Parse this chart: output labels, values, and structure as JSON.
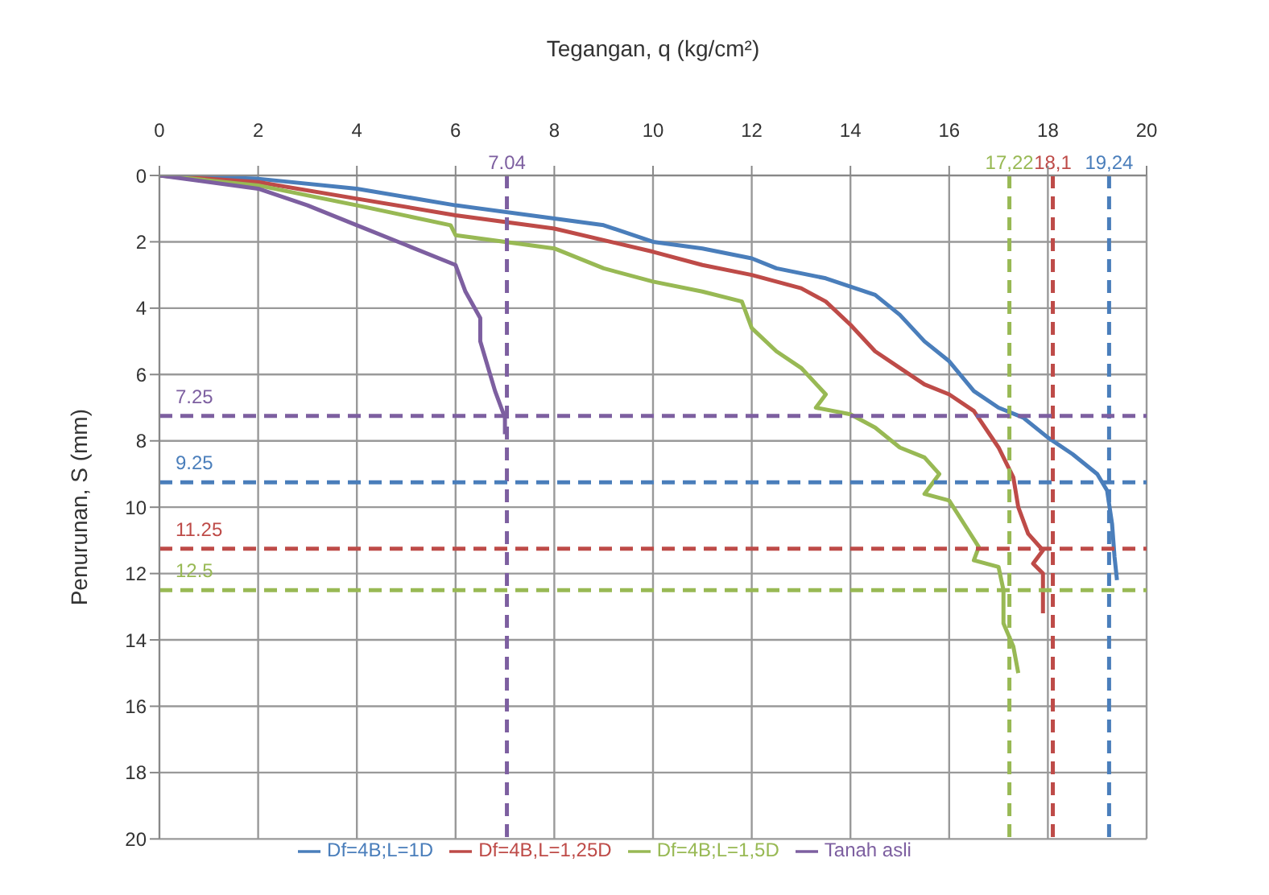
{
  "chart_data": {
    "type": "line",
    "xlabel": "Tegangan, q (kg/cm²)",
    "ylabel": "Penurunan, S (mm)",
    "xlim": [
      0,
      20
    ],
    "xticks": [
      0,
      2,
      4,
      6,
      8,
      10,
      12,
      14,
      16,
      18,
      20
    ],
    "ylim": [
      20,
      0
    ],
    "yticks": [
      0,
      2,
      4,
      6,
      8,
      10,
      12,
      14,
      16,
      18,
      20
    ],
    "grid": true,
    "legend": "bottom",
    "marker": "none",
    "line_style": "solid",
    "series": [
      {
        "name": "Df=4B;L=1D",
        "color": "#4a7ebb",
        "x": [
          0,
          2,
          4,
          6,
          8,
          9,
          10,
          11,
          12,
          12.5,
          13.5,
          14.5,
          15,
          15.5,
          16,
          16.5,
          17,
          17.5,
          18,
          18.5,
          19,
          19.2,
          19.3,
          19.35,
          19.4
        ],
        "values": [
          0,
          0.1,
          0.4,
          0.9,
          1.3,
          1.5,
          2.0,
          2.2,
          2.5,
          2.8,
          3.1,
          3.6,
          4.2,
          5,
          5.6,
          6.5,
          7,
          7.3,
          7.9,
          8.4,
          9,
          9.5,
          10.5,
          11.5,
          12.2
        ]
      },
      {
        "name": "Df=4B,L=1,25D",
        "color": "#be4b48",
        "x": [
          0,
          2,
          4,
          6,
          8,
          10,
          11,
          12,
          13,
          13.5,
          14,
          14.5,
          15,
          15.5,
          16,
          16.5,
          17,
          17.3,
          17.4,
          17.6,
          17.9,
          17.7,
          17.9,
          17.9
        ],
        "values": [
          0,
          0.2,
          0.7,
          1.2,
          1.6,
          2.3,
          2.7,
          3.0,
          3.4,
          3.8,
          4.5,
          5.3,
          5.8,
          6.3,
          6.6,
          7.1,
          8.2,
          9.1,
          10,
          10.8,
          11.3,
          11.7,
          12,
          13.2
        ]
      },
      {
        "name": "Df=4B;L=1,5D",
        "color": "#98b954",
        "x": [
          0,
          2,
          4,
          5.9,
          6,
          8,
          9,
          10,
          11,
          11.8,
          12,
          12.5,
          13,
          13.5,
          13.3,
          14,
          14.5,
          15,
          15.5,
          15.8,
          15.5,
          16,
          16.3,
          16.6,
          16.5,
          17,
          17.1,
          17.1,
          17.3,
          17.4
        ],
        "values": [
          0,
          0.3,
          0.9,
          1.5,
          1.8,
          2.2,
          2.8,
          3.2,
          3.5,
          3.8,
          4.6,
          5.3,
          5.8,
          6.6,
          7.0,
          7.2,
          7.6,
          8.2,
          8.5,
          9.0,
          9.6,
          9.8,
          10.5,
          11.2,
          11.6,
          11.8,
          12.5,
          13.5,
          14.2,
          15
        ]
      },
      {
        "name": "Tanah asli",
        "color": "#7d5fa0",
        "x": [
          0,
          2,
          3,
          4,
          5,
          6,
          6.2,
          6.5,
          6.5,
          6.7,
          6.8,
          7,
          7
        ],
        "values": [
          0,
          0.4,
          0.9,
          1.5,
          2.1,
          2.7,
          3.5,
          4.3,
          5,
          6,
          6.5,
          7.3,
          7.8
        ]
      }
    ],
    "ref_lines": [
      {
        "axis": "x",
        "value": 7.04,
        "label": "7.04",
        "color": "#7d5fa0",
        "line_style": "dashed"
      },
      {
        "axis": "x",
        "value": 17.22,
        "label": "17,22",
        "color": "#98b954",
        "line_style": "dashed"
      },
      {
        "axis": "x",
        "value": 18.1,
        "label": "18,1",
        "color": "#be4b48",
        "line_style": "dashed"
      },
      {
        "axis": "x",
        "value": 19.24,
        "label": "19,24",
        "color": "#4a7ebb",
        "line_style": "dashed"
      },
      {
        "axis": "y",
        "value": 7.25,
        "label": "7.25",
        "color": "#7d5fa0",
        "line_style": "dashed"
      },
      {
        "axis": "y",
        "value": 9.25,
        "label": "9.25",
        "color": "#4a7ebb",
        "line_style": "dashed"
      },
      {
        "axis": "y",
        "value": 11.25,
        "label": "11.25",
        "color": "#be4b48",
        "line_style": "dashed"
      },
      {
        "axis": "y",
        "value": 12.5,
        "label": "12.5",
        "color": "#98b954",
        "line_style": "dashed"
      }
    ]
  }
}
